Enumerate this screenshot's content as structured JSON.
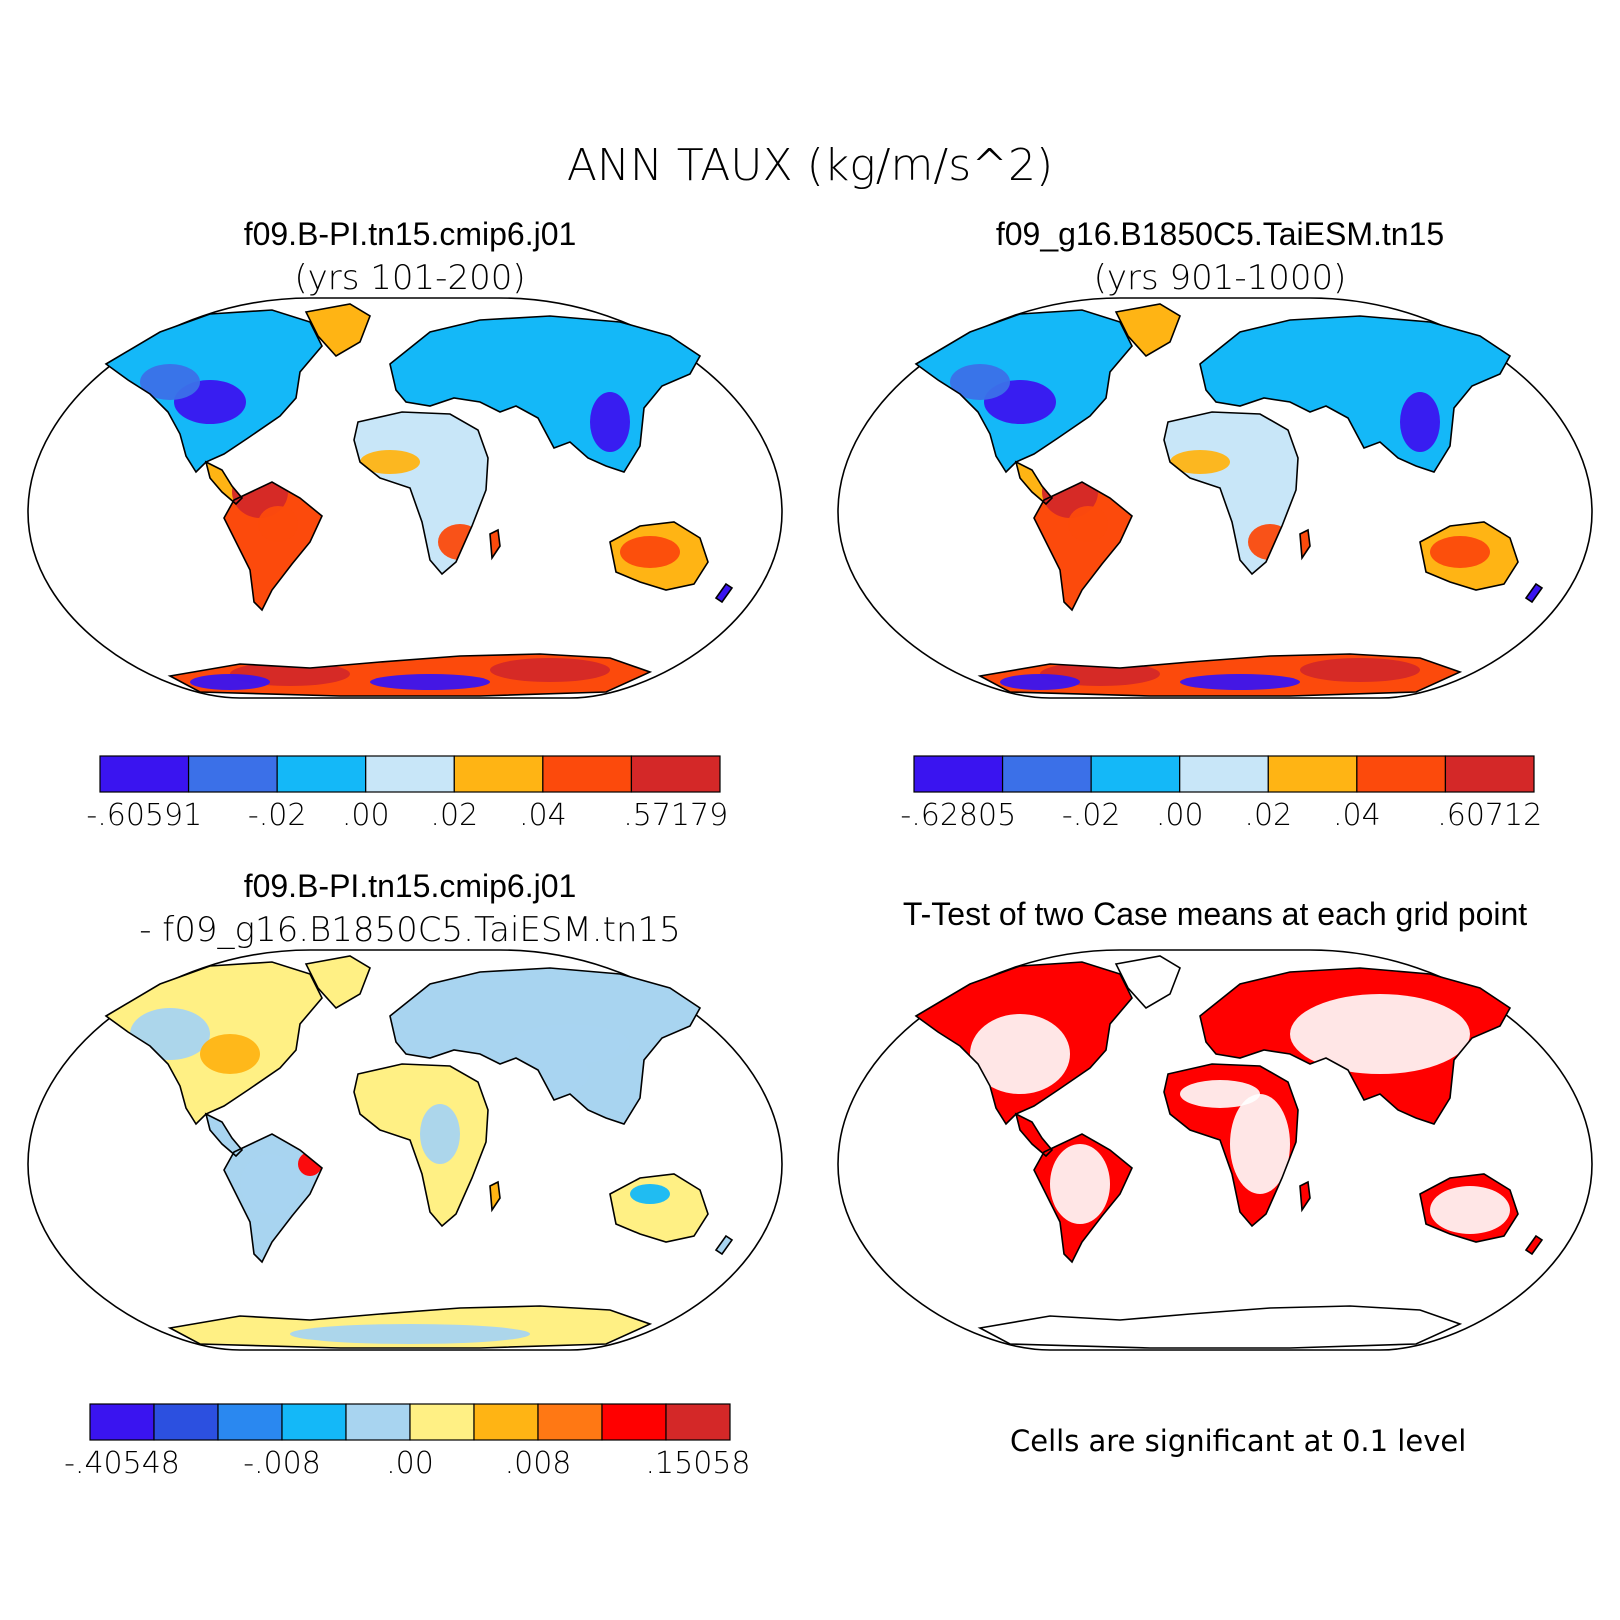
{
  "title": "ANN TAUX (kg/m/s^2)",
  "colors": {
    "land_outline": "#000000",
    "ocean": "#ffffff",
    "significant": "#ff0000"
  },
  "panels": [
    {
      "id": "case1",
      "title": "f09.B-PI.tn15.cmip6.j01",
      "subtitle": "(yrs 101-200)",
      "colorbar": {
        "colors": [
          "#3a14f0",
          "#3b70e8",
          "#14b8f8",
          "#c8e6f8",
          "#ffb414",
          "#fc4a0c",
          "#d42828"
        ],
        "labels": [
          "-.60591",
          "-.02",
          ".00",
          ".02",
          ".04",
          ".57179"
        ]
      }
    },
    {
      "id": "case2",
      "title": "f09_g16.B1850C5.TaiESM.tn15",
      "subtitle": "(yrs 901-1000)",
      "colorbar": {
        "colors": [
          "#3a14f0",
          "#3b70e8",
          "#14b8f8",
          "#c8e6f8",
          "#ffb414",
          "#fc4a0c",
          "#d42828"
        ],
        "labels": [
          "-.62805",
          "-.02",
          ".00",
          ".02",
          ".04",
          ".60712"
        ]
      }
    },
    {
      "id": "difference",
      "title": "f09.B-PI.tn15.cmip6.j01",
      "subtitle": "- f09_g16.B1850C5.TaiESM.tn15",
      "colorbar": {
        "colors": [
          "#3a14f0",
          "#2c50e0",
          "#2a88f0",
          "#14b8f8",
          "#a8d4f0",
          "#fff084",
          "#ffb414",
          "#ff7814",
          "#ff0000",
          "#d42828"
        ],
        "labels": [
          "-.40548",
          "-.008",
          ".00",
          ".008",
          ".15058"
        ]
      }
    },
    {
      "id": "ttest",
      "title": "T-Test of two Case means at each grid point",
      "note": "Cells are significant at 0.1 level"
    }
  ]
}
